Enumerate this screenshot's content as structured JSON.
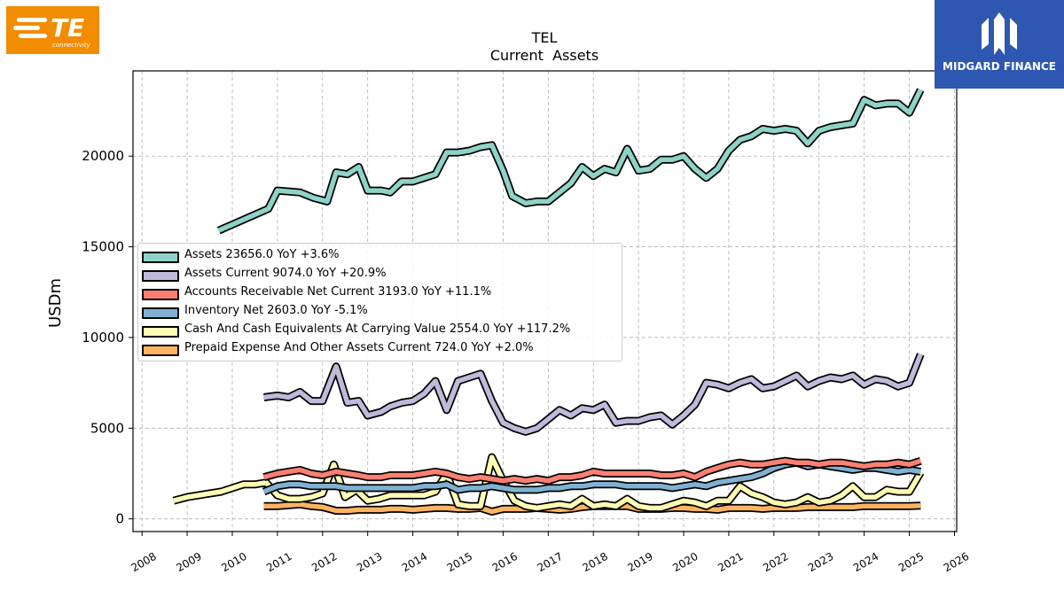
{
  "logos": {
    "left": {
      "text": "TE",
      "subtext": "connectivity",
      "color": "#f28c00"
    },
    "right": {
      "text": "MIDGARD FINANCE",
      "color": "#2d57b0"
    }
  },
  "chart_data": {
    "type": "line",
    "title": "TEL",
    "subtitle": "Current  Assets",
    "ylabel": "USDm",
    "xlabel": "",
    "xlim": [
      2007.8,
      2026.05
    ],
    "ylim": [
      -700,
      24700
    ],
    "x_ticks": [
      "2008",
      "2009",
      "2010",
      "2011",
      "2012",
      "2013",
      "2014",
      "2015",
      "2016",
      "2017",
      "2018",
      "2019",
      "2020",
      "2021",
      "2022",
      "2023",
      "2024",
      "2025",
      "2026"
    ],
    "y_ticks": [
      "0",
      "5000",
      "10000",
      "15000",
      "20000"
    ],
    "grid": true,
    "legend_position": "center-left",
    "series": [
      {
        "name": "Assets  23656.0 YoY +3.6%",
        "color": "#8dd3c7",
        "x": [
          2009.7,
          2010.8,
          2011.0,
          2011.5,
          2011.8,
          2012.1,
          2012.3,
          2012.55,
          2012.8,
          2013.0,
          2013.3,
          2013.5,
          2013.75,
          2014.0,
          2014.25,
          2014.5,
          2014.75,
          2015.0,
          2015.25,
          2015.5,
          2015.75,
          2016.0,
          2016.2,
          2016.5,
          2016.75,
          2017.0,
          2017.25,
          2017.5,
          2017.75,
          2018.0,
          2018.25,
          2018.5,
          2018.75,
          2019.0,
          2019.25,
          2019.5,
          2019.75,
          2020.0,
          2020.25,
          2020.5,
          2020.75,
          2021.0,
          2021.25,
          2021.5,
          2021.75,
          2022.0,
          2022.25,
          2022.5,
          2022.75,
          2023.0,
          2023.25,
          2023.5,
          2023.75,
          2024.0,
          2024.25,
          2024.5,
          2024.75,
          2025.0,
          2025.25
        ],
        "y": [
          15900,
          17100,
          18100,
          18000,
          17700,
          17500,
          19100,
          19000,
          19400,
          18100,
          18100,
          18000,
          18600,
          18600,
          18800,
          19000,
          20200,
          20200,
          20300,
          20500,
          20600,
          19200,
          17800,
          17400,
          17500,
          17500,
          18000,
          18500,
          19400,
          18900,
          19300,
          19100,
          20400,
          19200,
          19300,
          19800,
          19800,
          20000,
          19300,
          18800,
          19300,
          20300,
          20900,
          21100,
          21500,
          21400,
          21500,
          21400,
          20700,
          21400,
          21600,
          21700,
          21800,
          23100,
          22800,
          22900,
          22900,
          22400,
          23656
        ]
      },
      {
        "name": "Assets Current  9074.0 YoY +20.9%",
        "color": "#bebada",
        "x": [
          2010.7,
          2011.0,
          2011.25,
          2011.5,
          2011.75,
          2012.0,
          2012.3,
          2012.55,
          2012.8,
          2013.0,
          2013.3,
          2013.5,
          2013.75,
          2014.0,
          2014.25,
          2014.5,
          2014.75,
          2015.0,
          2015.25,
          2015.5,
          2015.75,
          2016.0,
          2016.25,
          2016.5,
          2016.75,
          2017.0,
          2017.25,
          2017.5,
          2017.75,
          2018.0,
          2018.25,
          2018.5,
          2018.75,
          2019.0,
          2019.25,
          2019.5,
          2019.75,
          2020.0,
          2020.25,
          2020.5,
          2020.75,
          2021.0,
          2021.25,
          2021.5,
          2021.75,
          2022.0,
          2022.25,
          2022.5,
          2022.75,
          2023.0,
          2023.25,
          2023.5,
          2023.75,
          2024.0,
          2024.25,
          2024.5,
          2024.75,
          2025.0,
          2025.25
        ],
        "y": [
          6700,
          6800,
          6700,
          7000,
          6500,
          6500,
          8400,
          6400,
          6500,
          5700,
          5900,
          6200,
          6400,
          6500,
          6900,
          7600,
          6000,
          7600,
          7800,
          8000,
          6500,
          5300,
          5000,
          4800,
          5000,
          5500,
          6000,
          5700,
          6100,
          6000,
          6300,
          5300,
          5400,
          5400,
          5600,
          5700,
          5200,
          5700,
          6300,
          7500,
          7400,
          7200,
          7500,
          7700,
          7200,
          7300,
          7600,
          7900,
          7300,
          7600,
          7800,
          7700,
          7900,
          7400,
          7700,
          7600,
          7300,
          7500,
          9074
        ]
      },
      {
        "name": "Accounts Receivable Net Current  3193.0 YoY +11.1%",
        "color": "#fb8072",
        "x": [
          2010.7,
          2011.0,
          2011.25,
          2011.5,
          2011.75,
          2012.0,
          2012.3,
          2012.55,
          2012.8,
          2013.0,
          2013.3,
          2013.5,
          2013.75,
          2014.0,
          2014.25,
          2014.5,
          2014.75,
          2015.0,
          2015.25,
          2015.5,
          2015.75,
          2016.0,
          2016.25,
          2016.5,
          2016.75,
          2017.0,
          2017.25,
          2017.5,
          2017.75,
          2018.0,
          2018.25,
          2018.5,
          2018.75,
          2019.0,
          2019.25,
          2019.5,
          2019.75,
          2020.0,
          2020.25,
          2020.5,
          2020.75,
          2021.0,
          2021.25,
          2021.5,
          2021.75,
          2022.0,
          2022.25,
          2022.5,
          2022.75,
          2023.0,
          2023.25,
          2023.5,
          2023.75,
          2024.0,
          2024.25,
          2024.5,
          2024.75,
          2025.0,
          2025.25
        ],
        "y": [
          2300,
          2500,
          2600,
          2700,
          2500,
          2400,
          2600,
          2500,
          2400,
          2300,
          2300,
          2400,
          2400,
          2400,
          2500,
          2600,
          2500,
          2300,
          2200,
          2300,
          2200,
          2100,
          2200,
          2100,
          2200,
          2100,
          2300,
          2300,
          2400,
          2600,
          2500,
          2500,
          2500,
          2500,
          2500,
          2400,
          2400,
          2500,
          2300,
          2600,
          2800,
          3000,
          3100,
          3000,
          3000,
          3100,
          3200,
          3100,
          3100,
          3000,
          3100,
          3100,
          3000,
          2900,
          3000,
          3000,
          3100,
          3000,
          3193
        ]
      },
      {
        "name": "Inventory Net  2603.0 YoY -5.1%",
        "color": "#80b1d3",
        "x": [
          2010.7,
          2011.0,
          2011.25,
          2011.5,
          2011.75,
          2012.0,
          2012.3,
          2012.55,
          2012.8,
          2013.0,
          2013.3,
          2013.5,
          2013.75,
          2014.0,
          2014.25,
          2014.5,
          2014.75,
          2015.0,
          2015.25,
          2015.5,
          2015.75,
          2016.0,
          2016.25,
          2016.5,
          2016.75,
          2017.0,
          2017.25,
          2017.5,
          2017.75,
          2018.0,
          2018.25,
          2018.5,
          2018.75,
          2019.0,
          2019.25,
          2019.5,
          2019.75,
          2020.0,
          2020.25,
          2020.5,
          2020.75,
          2021.0,
          2021.25,
          2021.5,
          2021.75,
          2022.0,
          2022.25,
          2022.5,
          2022.75,
          2023.0,
          2023.25,
          2023.5,
          2023.75,
          2024.0,
          2024.25,
          2024.5,
          2024.75,
          2025.0,
          2025.25
        ],
        "y": [
          1500,
          1800,
          1900,
          1900,
          1800,
          1800,
          1800,
          1700,
          1700,
          1700,
          1700,
          1700,
          1700,
          1700,
          1800,
          1800,
          1900,
          1600,
          1700,
          1700,
          1800,
          1700,
          1600,
          1600,
          1600,
          1700,
          1700,
          1800,
          1800,
          1900,
          1900,
          1900,
          1800,
          1800,
          1800,
          1800,
          1700,
          1800,
          1900,
          1800,
          2000,
          2100,
          2200,
          2300,
          2500,
          2800,
          3000,
          3100,
          2900,
          3000,
          2900,
          2800,
          2700,
          2800,
          2800,
          2700,
          2600,
          2700,
          2603
        ]
      },
      {
        "name": "Cash And Cash Equivalents At Carrying Value  2554.0 YoY +117.2%",
        "color": "#ffffb3",
        "x": [
          2008.7,
          2009.0,
          2009.5,
          2009.75,
          2010.0,
          2010.25,
          2010.5,
          2010.75,
          2011.0,
          2011.25,
          2011.5,
          2011.75,
          2012.0,
          2012.25,
          2012.5,
          2012.75,
          2013.0,
          2013.25,
          2013.5,
          2013.75,
          2014.0,
          2014.25,
          2014.5,
          2014.75,
          2015.0,
          2015.25,
          2015.5,
          2015.75,
          2016.0,
          2016.25,
          2016.5,
          2016.75,
          2017.0,
          2017.25,
          2017.5,
          2017.75,
          2018.0,
          2018.25,
          2018.5,
          2018.75,
          2019.0,
          2019.25,
          2019.5,
          2019.75,
          2020.0,
          2020.25,
          2020.5,
          2020.75,
          2021.0,
          2021.25,
          2021.5,
          2021.75,
          2022.0,
          2022.25,
          2022.5,
          2022.75,
          2023.0,
          2023.25,
          2023.5,
          2023.75,
          2024.0,
          2024.25,
          2024.5,
          2024.75,
          2025.0,
          2025.25
        ],
        "y": [
          1000,
          1200,
          1400,
          1500,
          1700,
          1900,
          1900,
          2000,
          1300,
          1100,
          1100,
          1200,
          1400,
          3000,
          1200,
          1600,
          1000,
          1100,
          1300,
          1300,
          1300,
          1300,
          1500,
          2500,
          800,
          700,
          700,
          3400,
          2100,
          1000,
          700,
          600,
          700,
          800,
          700,
          1100,
          700,
          800,
          700,
          1100,
          700,
          600,
          600,
          800,
          1000,
          900,
          700,
          1000,
          1000,
          1800,
          1400,
          1200,
          900,
          800,
          900,
          1200,
          900,
          1000,
          1300,
          1800,
          1200,
          1200,
          1600,
          1500,
          1500,
          2554
        ]
      },
      {
        "name": "Prepaid Expense And Other Assets Current  724.0 YoY +2.0%",
        "color": "#fdb462",
        "x": [
          2010.7,
          2011.0,
          2011.25,
          2011.5,
          2011.75,
          2012.0,
          2012.3,
          2012.55,
          2012.8,
          2013.0,
          2013.3,
          2013.5,
          2013.75,
          2014.0,
          2014.25,
          2014.5,
          2014.75,
          2015.0,
          2015.25,
          2015.5,
          2015.75,
          2016.0,
          2016.25,
          2016.5,
          2016.75,
          2017.0,
          2017.25,
          2017.5,
          2017.75,
          2018.0,
          2018.25,
          2018.5,
          2018.75,
          2019.0,
          2019.25,
          2019.5,
          2019.75,
          2020.0,
          2020.25,
          2020.5,
          2020.75,
          2021.0,
          2021.25,
          2021.5,
          2021.75,
          2022.0,
          2022.25,
          2022.5,
          2022.75,
          2023.0,
          2023.25,
          2023.5,
          2023.75,
          2024.0,
          2024.25,
          2024.5,
          2024.75,
          2025.0,
          2025.25
        ],
        "y": [
          700,
          700,
          750,
          800,
          700,
          650,
          450,
          450,
          500,
          500,
          500,
          550,
          550,
          500,
          550,
          600,
          600,
          550,
          550,
          600,
          400,
          550,
          550,
          550,
          600,
          550,
          500,
          550,
          650,
          700,
          700,
          700,
          700,
          550,
          550,
          550,
          600,
          600,
          550,
          550,
          500,
          600,
          600,
          600,
          550,
          600,
          600,
          600,
          650,
          650,
          650,
          650,
          650,
          700,
          700,
          700,
          700,
          700,
          724
        ]
      }
    ]
  }
}
